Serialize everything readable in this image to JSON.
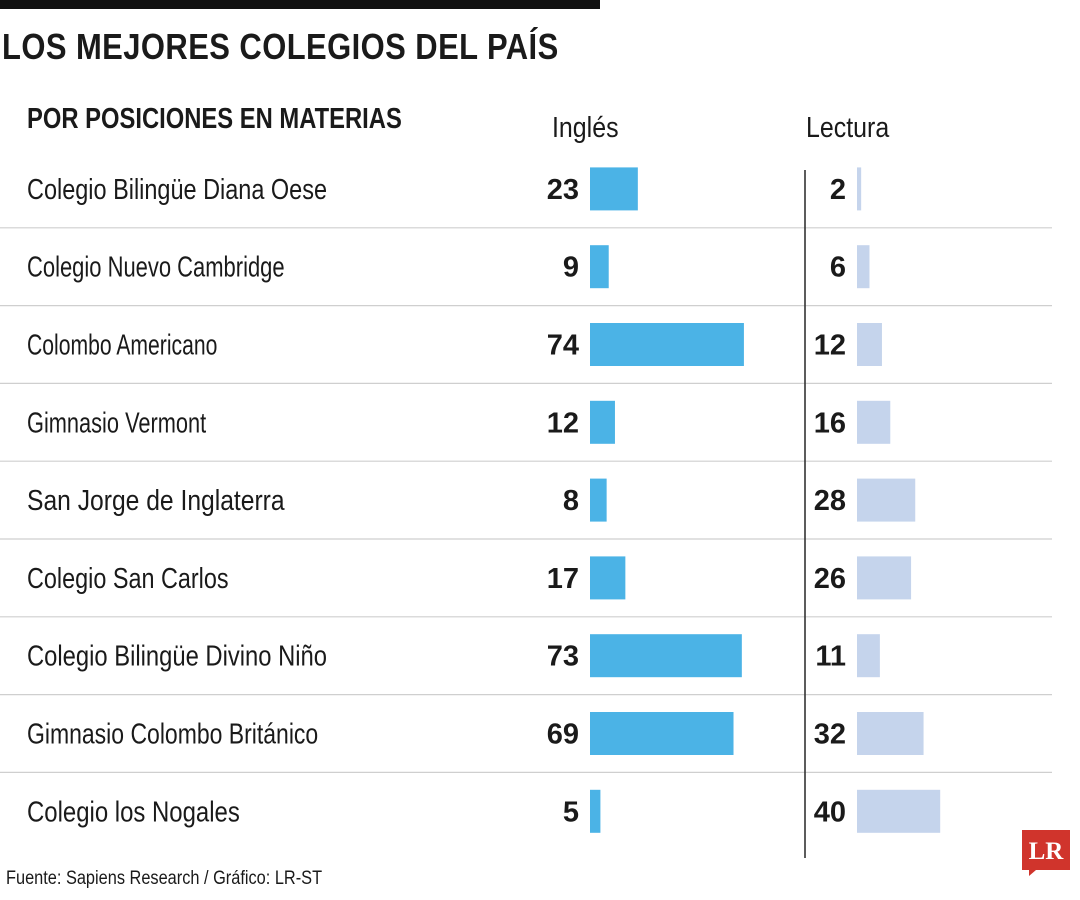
{
  "title": "LOS MEJORES COLEGIOS DEL PAÍS",
  "chart_data": {
    "type": "bar",
    "title": "LOS MEJORES COLEGIOS DEL PAÍS",
    "subtitle": "POR POSICIONES EN MATERIAS",
    "categories": [
      "Colegio Bilingüe Diana Oese",
      "Colegio Nuevo Cambridge",
      "Colombo Americano",
      "Gimnasio Vermont",
      "San Jorge de Inglaterra",
      "Colegio San Carlos",
      "Colegio Bilingüe Divino Niño",
      "Gimnasio Colombo Británico",
      "Colegio los Nogales"
    ],
    "series": [
      {
        "name": "Inglés",
        "color": "#4bb3e6",
        "values": [
          23,
          9,
          74,
          12,
          8,
          17,
          73,
          69,
          5
        ]
      },
      {
        "name": "Lectura",
        "color": "#c5d4ec",
        "values": [
          2,
          6,
          12,
          16,
          28,
          26,
          11,
          32,
          40
        ]
      }
    ],
    "grid": false,
    "legend": "column-headers"
  },
  "source": "Fuente: Sapiens Research / Gráfico: LR-ST",
  "logo": {
    "text": "LR",
    "color": "#d0342c"
  }
}
